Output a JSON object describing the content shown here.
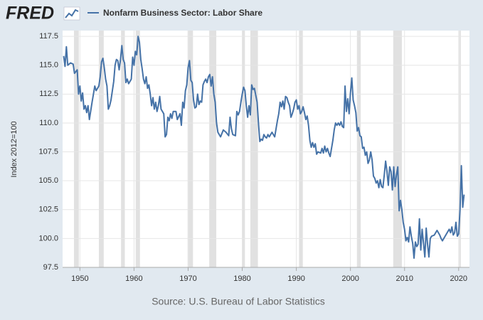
{
  "logo": "FRED",
  "chart_data": {
    "type": "line",
    "legend": "Nonfarm Business Sector: Labor Share",
    "ylabel": "Index 2012=100",
    "source": "Source: U.S. Bureau of Labor Statistics",
    "color": "#4572a7",
    "grid": true,
    "recession_color": "#e1e1e1",
    "recessions": [
      [
        1948.9,
        1949.8
      ],
      [
        1953.5,
        1954.4
      ],
      [
        1957.6,
        1958.3
      ],
      [
        1960.3,
        1961.1
      ],
      [
        1969.9,
        1970.9
      ],
      [
        1973.9,
        1975.2
      ],
      [
        1980.0,
        1980.5
      ],
      [
        1981.5,
        1982.9
      ],
      [
        1990.5,
        1991.2
      ],
      [
        2001.2,
        2001.9
      ],
      [
        2007.9,
        2009.5
      ],
      [
        2020.1,
        2020.4
      ]
    ],
    "xlim": [
      1946.8,
      2022
    ],
    "xticks": [
      1950,
      1960,
      1970,
      1980,
      1990,
      2000,
      2010,
      2020
    ],
    "ylim": [
      97.5,
      118
    ],
    "yticks": [
      97.5,
      {
        "value": 100,
        "label": "100.0"
      },
      102.5,
      {
        "value": 105,
        "label": "105.0"
      },
      107.5,
      {
        "value": 110,
        "label": "110.0"
      },
      112.5,
      {
        "value": 115,
        "label": "115.0"
      },
      117.5
    ],
    "x": [
      1947,
      1947.25,
      1947.5,
      1947.75,
      1948.25,
      1948.75,
      1949,
      1949.5,
      1949.75,
      1950,
      1950.25,
      1950.5,
      1950.75,
      1951,
      1951.25,
      1951.5,
      1951.75,
      1952.25,
      1952.5,
      1952.75,
      1953,
      1953.5,
      1953.75,
      1954,
      1954.25,
      1954.5,
      1954.75,
      1955,
      1955.25,
      1955.5,
      1955.75,
      1956.25,
      1956.5,
      1956.75,
      1957,
      1957.25,
      1957.5,
      1957.75,
      1958,
      1958.25,
      1958.5,
      1958.75,
      1959,
      1959.5,
      1959.75,
      1960,
      1960.25,
      1960.5,
      1960.75,
      1961,
      1961.25,
      1961.5,
      1961.75,
      1962,
      1962.25,
      1962.5,
      1962.75,
      1963,
      1963.25,
      1963.5,
      1963.75,
      1964,
      1964.25,
      1964.5,
      1964.75,
      1965,
      1965.5,
      1965.75,
      1966,
      1966.25,
      1966.5,
      1966.75,
      1967,
      1967.25,
      1967.75,
      1968,
      1968.5,
      1968.75,
      1969,
      1969.25,
      1969.5,
      1969.75,
      1970,
      1970.25,
      1970.5,
      1970.75,
      1971,
      1971.25,
      1971.5,
      1971.75,
      1972,
      1972.25,
      1972.5,
      1972.75,
      1973,
      1973.25,
      1973.5,
      1973.75,
      1974,
      1974.25,
      1974.5,
      1974.75,
      1975,
      1975.25,
      1975.5,
      1975.75,
      1976,
      1976.5,
      1977,
      1977.5,
      1977.75,
      1978,
      1978.25,
      1978.75,
      1979,
      1979.25,
      1979.5,
      1979.75,
      1980,
      1980.25,
      1980.5,
      1980.75,
      1981,
      1981.25,
      1981.5,
      1981.75,
      1982,
      1982.25,
      1982.5,
      1982.75,
      1983,
      1983.25,
      1983.5,
      1983.75,
      1984,
      1984.25,
      1984.5,
      1984.75,
      1985,
      1985.5,
      1985.75,
      1986,
      1986.25,
      1986.5,
      1986.75,
      1987,
      1987.25,
      1987.5,
      1987.75,
      1988,
      1988.25,
      1988.5,
      1988.75,
      1989,
      1989.25,
      1989.5,
      1989.75,
      1990,
      1990.25,
      1990.5,
      1990.75,
      1991,
      1991.25,
      1991.5,
      1991.75,
      1992,
      1992.25,
      1992.5,
      1992.75,
      1993,
      1993.25,
      1993.5,
      1993.75,
      1994,
      1994.5,
      1994.75,
      1995,
      1995.25,
      1995.5,
      1995.75,
      1996,
      1996.25,
      1996.75,
      1997,
      1997.25,
      1997.5,
      1997.75,
      1998,
      1998.25,
      1998.5,
      1998.75,
      1999,
      1999.25,
      1999.5,
      1999.75,
      2000,
      2000.25,
      2000.5,
      2000.75,
      2001,
      2001.25,
      2001.5,
      2001.75,
      2002,
      2002.25,
      2002.5,
      2002.75,
      2003,
      2003.25,
      2003.5,
      2003.75,
      2004,
      2004.25,
      2004.5,
      2004.75,
      2005,
      2005.25,
      2005.5,
      2005.75,
      2006,
      2006.25,
      2006.5,
      2006.75,
      2007,
      2007.25,
      2007.5,
      2007.75,
      2008,
      2008.25,
      2008.5,
      2008.75,
      2009,
      2009.25,
      2009.5,
      2009.75,
      2010,
      2010.25,
      2010.5,
      2010.75,
      2011,
      2011.25,
      2011.5,
      2011.75,
      2012,
      2012.25,
      2012.5,
      2012.75,
      2013,
      2013.25,
      2013.5,
      2013.75,
      2014,
      2014.25,
      2014.5,
      2014.75,
      2015,
      2015.5,
      2015.75,
      2016,
      2016.25,
      2016.5,
      2016.75,
      2017,
      2017.5,
      2018,
      2018.25,
      2018.5,
      2018.75,
      2019,
      2019.25,
      2019.5,
      2019.75,
      2020,
      2020.25,
      2020.5,
      2020.75,
      2021
    ],
    "values": [
      115.8,
      114.9,
      116.6,
      115.0,
      115.2,
      115.1,
      114.3,
      114.6,
      112.5,
      113.2,
      111.9,
      112.6,
      111.2,
      111.5,
      110.9,
      111.5,
      110.3,
      111.8,
      112.5,
      113.2,
      112.8,
      113.2,
      114.0,
      115.3,
      115.6,
      114.8,
      113.8,
      113.2,
      111.2,
      111.5,
      112.0,
      113.6,
      115.0,
      115.5,
      115.4,
      114.6,
      115.5,
      116.7,
      115.5,
      115.2,
      113.5,
      113.8,
      113.4,
      113.8,
      115.7,
      115.0,
      116.2,
      115.9,
      117.5,
      117.0,
      115.5,
      114.7,
      113.8,
      113.4,
      114.0,
      113.0,
      113.3,
      112.5,
      111.5,
      112.2,
      111.2,
      111.8,
      111.0,
      111.5,
      112.3,
      111.2,
      110.8,
      108.8,
      109.0,
      110.5,
      110.2,
      110.8,
      110.4,
      111.0,
      111.0,
      110.3,
      110.8,
      109.8,
      111.8,
      111.3,
      112.8,
      113.3,
      114.8,
      115.4,
      113.7,
      113.5,
      112.0,
      111.3,
      111.4,
      112.5,
      111.6,
      111.9,
      111.8,
      113.3,
      113.6,
      113.8,
      113.5,
      114.0,
      114.2,
      113.2,
      114.0,
      112.5,
      111.8,
      110.0,
      109.2,
      109.0,
      108.8,
      109.4,
      109.2,
      108.9,
      110.5,
      109.5,
      109.0,
      108.9,
      111.0,
      110.7,
      111.0,
      111.8,
      112.5,
      113.1,
      112.8,
      111.5,
      110.5,
      111.5,
      110.7,
      113.3,
      112.9,
      113.0,
      112.4,
      111.8,
      110.0,
      108.4,
      108.6,
      108.5,
      109.0,
      108.8,
      108.7,
      109.0,
      108.8,
      109.2,
      109.0,
      108.8,
      109.5,
      110.2,
      110.8,
      111.8,
      111.4,
      111.9,
      111.2,
      112.3,
      112.2,
      111.8,
      111.5,
      110.5,
      110.8,
      111.2,
      111.8,
      112.0,
      111.2,
      111.5,
      110.8,
      111.0,
      111.4,
      110.9,
      110.3,
      110.6,
      109.8,
      108.5,
      107.9,
      108.3,
      107.9,
      108.2,
      107.3,
      107.5,
      107.4,
      107.8,
      107.4,
      108.0,
      107.5,
      107.8,
      107.4,
      107.1,
      108.5,
      109.4,
      110.0,
      109.8,
      110.0,
      109.8,
      110.1,
      109.7,
      109.6,
      113.2,
      111.0,
      112.1,
      110.8,
      112.6,
      113.9,
      112.0,
      111.5,
      110.9,
      109.3,
      109.6,
      108.9,
      108.8,
      107.8,
      107.9,
      107.2,
      107.5,
      106.5,
      106.8,
      107.5,
      106.8,
      105.4,
      105.2,
      104.8,
      105.0,
      104.4,
      105.1,
      104.5,
      104.4,
      105.5,
      106.7,
      105.8,
      104.6,
      106.2,
      105.8,
      104.2,
      106.2,
      104.5,
      105.5,
      106.2,
      102.4,
      103.3,
      102.5,
      101.4,
      100.8,
      99.8,
      100.1,
      99.7,
      101.0,
      100.2,
      99.6,
      98.3,
      99.7,
      99.3,
      99.5,
      101.7,
      99.0,
      100.8,
      99.6,
      98.4,
      100.9,
      99.5,
      98.4,
      100.0,
      100.2,
      100.3,
      100.5,
      100.7,
      100.5,
      100.3,
      100.0,
      99.8,
      100.2,
      100.6,
      100.8,
      100.5,
      101.0,
      100.3,
      100.5,
      101.4,
      100.2,
      100.4,
      102.5,
      106.3,
      102.7,
      103.8
    ]
  }
}
